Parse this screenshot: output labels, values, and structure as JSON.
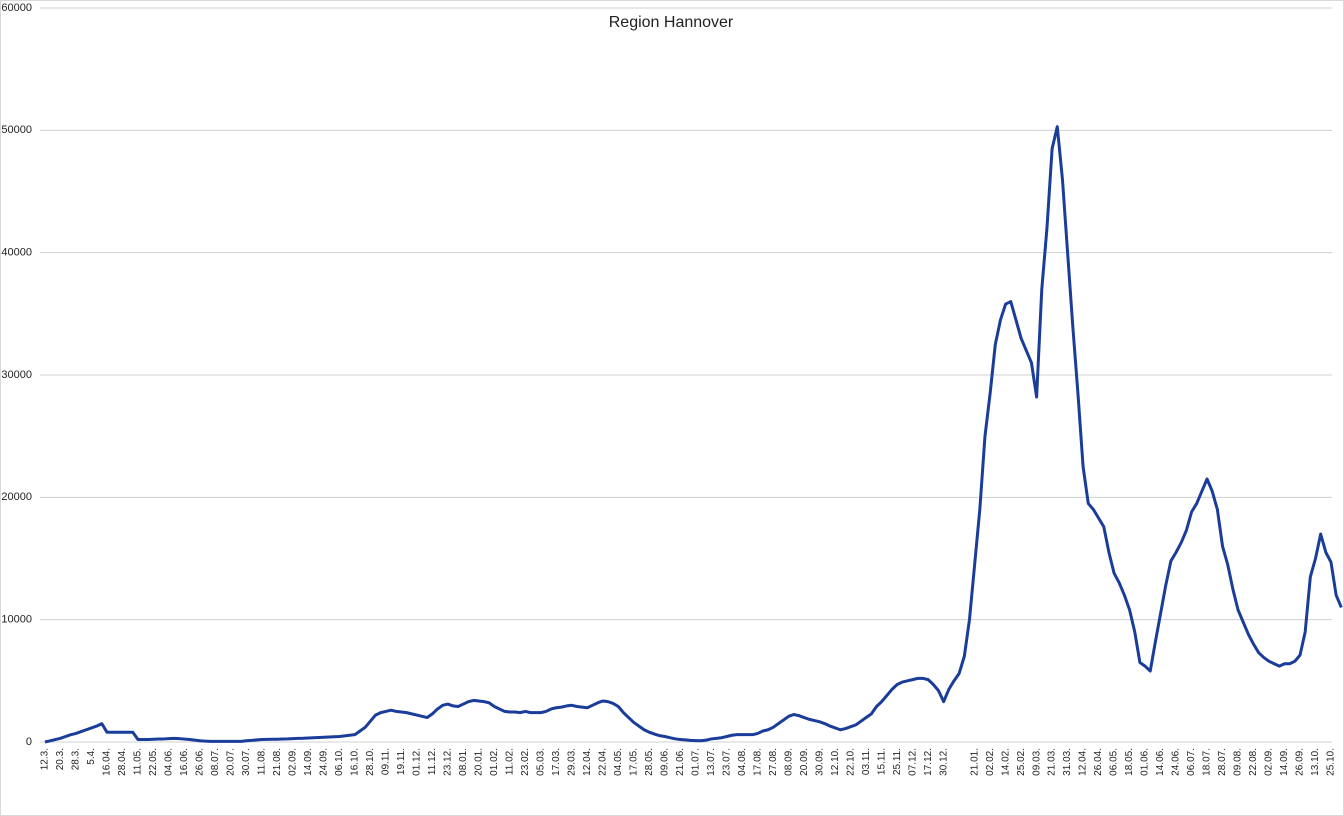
{
  "chart_data": {
    "type": "line",
    "title": "Region Hannover",
    "categories": [
      "12.3.",
      null,
      null,
      "20.3.",
      null,
      null,
      "28.3.",
      null,
      null,
      "5.4.",
      null,
      null,
      "16.04.",
      null,
      null,
      "28.04.",
      null,
      null,
      "11.05.",
      null,
      null,
      "22.05.",
      null,
      null,
      "04.06.",
      null,
      null,
      "16.06.",
      null,
      null,
      "26.06.",
      null,
      null,
      "08.07.",
      null,
      null,
      "20.07.",
      null,
      null,
      "30.07.",
      null,
      null,
      "11.08.",
      null,
      null,
      "21.08.",
      null,
      null,
      "02.09.",
      null,
      null,
      "14.09.",
      null,
      null,
      "24.09.",
      null,
      null,
      "06.10.",
      null,
      null,
      "16.10.",
      null,
      null,
      "28.10.",
      null,
      null,
      "09.11.",
      null,
      null,
      "19.11.",
      null,
      null,
      "01.12.",
      null,
      null,
      "11.12.",
      null,
      null,
      "23.12.",
      null,
      null,
      "08.01.",
      null,
      null,
      "20.01.",
      null,
      null,
      "01.02.",
      null,
      null,
      "11.02.",
      null,
      null,
      "23.02.",
      null,
      null,
      "05.03.",
      null,
      null,
      "17.03.",
      null,
      null,
      "29.03.",
      null,
      null,
      "12.04.",
      null,
      null,
      "22.04.",
      null,
      null,
      "04.05.",
      null,
      null,
      "17.05.",
      null,
      null,
      "28.05.",
      null,
      null,
      "09.06.",
      null,
      null,
      "21.06.",
      null,
      null,
      "01.07.",
      null,
      null,
      "13.07.",
      null,
      null,
      "23.07.",
      null,
      null,
      "04.08.",
      null,
      null,
      "17.08.",
      null,
      null,
      "27.08.",
      null,
      null,
      "08.09.",
      null,
      null,
      "20.09.",
      null,
      null,
      "30.09.",
      null,
      null,
      "12.10.",
      null,
      null,
      "22.10.",
      null,
      null,
      "03.11.",
      null,
      null,
      "15.11.",
      null,
      null,
      "25.11.",
      null,
      null,
      "07.12.",
      null,
      null,
      "17.12.",
      null,
      null,
      "30.12.",
      null,
      null,
      null,
      null,
      null,
      "21.01.",
      null,
      null,
      "02.02.",
      null,
      null,
      "14.02.",
      null,
      null,
      "25.02.",
      null,
      null,
      "09.03.",
      null,
      null,
      "21.03.",
      null,
      null,
      "31.03.",
      null,
      null,
      "12.04.",
      null,
      null,
      "26.04.",
      null,
      null,
      "06.05.",
      null,
      null,
      "18.05.",
      null,
      null,
      "01.06.",
      null,
      null,
      "14.06.",
      null,
      null,
      "24.06.",
      null,
      null,
      "06.07.",
      null,
      null,
      "18.07.",
      null,
      null,
      "28.07.",
      null,
      null,
      "09.08.",
      null,
      null,
      "22.08.",
      null,
      null,
      "02.09.",
      null,
      null,
      "14.09.",
      null,
      null,
      "26.09.",
      null,
      null,
      "13.10.",
      null,
      null,
      "25.10.",
      null,
      null
    ],
    "values": [
      0,
      100,
      200,
      300,
      450,
      600,
      700,
      850,
      1000,
      1150,
      1300,
      1500,
      800,
      800,
      800,
      800,
      800,
      800,
      200,
      200,
      200,
      220,
      240,
      250,
      280,
      300,
      280,
      240,
      200,
      150,
      100,
      70,
      50,
      50,
      50,
      50,
      50,
      50,
      50,
      100,
      130,
      170,
      200,
      210,
      220,
      230,
      250,
      260,
      280,
      300,
      310,
      330,
      350,
      370,
      390,
      410,
      430,
      450,
      500,
      550,
      600,
      900,
      1200,
      1700,
      2200,
      2400,
      2500,
      2600,
      2500,
      2450,
      2400,
      2300,
      2200,
      2100,
      2000,
      2300,
      2700,
      3000,
      3100,
      2950,
      2900,
      3100,
      3300,
      3400,
      3350,
      3300,
      3200,
      2900,
      2700,
      2500,
      2450,
      2450,
      2400,
      2500,
      2400,
      2400,
      2400,
      2500,
      2700,
      2800,
      2850,
      2950,
      3000,
      2900,
      2850,
      2800,
      3000,
      3200,
      3350,
      3300,
      3150,
      2900,
      2400,
      2000,
      1600,
      1300,
      1000,
      800,
      650,
      520,
      450,
      350,
      260,
      200,
      170,
      130,
      110,
      100,
      150,
      250,
      300,
      350,
      450,
      550,
      600,
      600,
      600,
      600,
      700,
      900,
      1000,
      1200,
      1500,
      1800,
      2100,
      2250,
      2150,
      2000,
      1850,
      1750,
      1650,
      1500,
      1300,
      1150,
      1000,
      1100,
      1250,
      1400,
      1700,
      2000,
      2300,
      2900,
      3300,
      3800,
      4300,
      4700,
      4900,
      5000,
      5100,
      5200,
      5200,
      5100,
      4700,
      4200,
      3300,
      4300,
      5000,
      5600,
      7000,
      10000,
      14500,
      19000,
      25000,
      28500,
      32500,
      34500,
      35800,
      36000,
      34500,
      33000,
      32000,
      31000,
      28200,
      37000,
      42000,
      48500,
      50300,
      46000,
      40000,
      34000,
      28500,
      22500,
      19500,
      19000,
      18300,
      17600,
      15500,
      13800,
      13000,
      12000,
      10800,
      9000,
      6500,
      6200,
      5800,
      8200,
      10500,
      12800,
      14800,
      15500,
      16300,
      17300,
      18800,
      19500,
      20500,
      21500,
      20500,
      19000,
      16000,
      14500,
      12500,
      10800,
      9800,
      8800,
      8000,
      7300,
      6900,
      6600,
      6400,
      6200,
      6400,
      6400,
      6600,
      7100,
      9000,
      13500,
      15000,
      17000,
      15500,
      14700,
      12000,
      11000
    ],
    "color": "#1a3d9a",
    "ylim": [
      0,
      60000
    ],
    "yticks": [
      0,
      10000,
      20000,
      30000,
      40000,
      50000,
      60000
    ],
    "grid": true
  }
}
